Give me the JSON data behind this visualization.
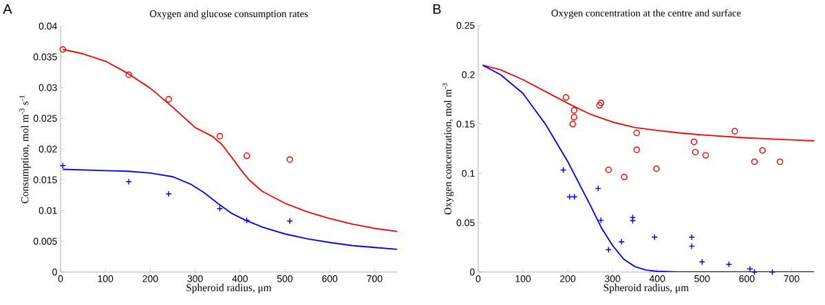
{
  "chart_data": [
    {
      "type": "line",
      "title": "Oxygen and glucose consumption rates",
      "xlabel": "Spheroid radius, μm",
      "ylabel": "Consumption, mol m$^{-3}$ s$^{-1}$",
      "annotations": [
        "A"
      ],
      "xlim": [
        0,
        750
      ],
      "ylim": [
        0,
        0.04
      ],
      "xticks": [
        0,
        100,
        200,
        300,
        400,
        500,
        600,
        700
      ],
      "yticks": [
        0,
        0.005,
        0.01,
        0.015,
        0.02,
        0.025,
        0.03,
        0.035,
        0.04
      ],
      "series": [
        {
          "color": "#ff0000",
          "x": [
            5,
            50,
            100,
            150,
            200,
            250,
            300,
            340,
            360,
            380,
            400,
            420,
            450,
            500,
            550,
            600,
            650,
            700,
            750
          ],
          "values": [
            0.0362,
            0.0355,
            0.0343,
            0.0323,
            0.0299,
            0.0268,
            0.0235,
            0.022,
            0.0207,
            0.0188,
            0.0168,
            0.015,
            0.0131,
            0.0112,
            0.0098,
            0.0087,
            0.0078,
            0.0071,
            0.0066
          ]
        },
        {
          "color": "#0000ff",
          "x": [
            5,
            100,
            150,
            200,
            250,
            290,
            320,
            350,
            380,
            410,
            450,
            500,
            550,
            600,
            650,
            700,
            750
          ],
          "values": [
            0.0167,
            0.0165,
            0.0164,
            0.0161,
            0.0155,
            0.0143,
            0.0129,
            0.0112,
            0.0096,
            0.0085,
            0.0073,
            0.0062,
            0.0054,
            0.0048,
            0.0043,
            0.004,
            0.0037
          ]
        },
        {
          "type": "scatter",
          "marker": "circle",
          "color": "#ff0000",
          "x": [
            5,
            152,
            241,
            355,
            415,
            511
          ],
          "values": [
            0.0362,
            0.0321,
            0.0281,
            0.0221,
            0.0189,
            0.0183
          ]
        },
        {
          "type": "scatter",
          "marker": "cross",
          "color": "#0000ff",
          "x": [
            5,
            152,
            241,
            355,
            415,
            511
          ],
          "values": [
            0.0173,
            0.0147,
            0.0127,
            0.0103,
            0.0084,
            0.0083
          ]
        }
      ]
    },
    {
      "type": "line",
      "title": "Oxygen concentration at the centre and surface",
      "xlabel": "Spheroid radius, μm",
      "ylabel": "Oxygen concentration, mol m$^{-3}$",
      "annotations": [
        "B"
      ],
      "xlim": [
        0,
        750
      ],
      "ylim": [
        0,
        0.25
      ],
      "xticks": [
        0,
        100,
        200,
        300,
        400,
        500,
        600,
        700
      ],
      "yticks": [
        0,
        0.05,
        0.1,
        0.15,
        0.2,
        0.25
      ],
      "series": [
        {
          "color": "#ff0000",
          "x": [
            10,
            50,
            100,
            150,
            200,
            250,
            300,
            350,
            400,
            450,
            500,
            550,
            600,
            650,
            700,
            750
          ],
          "values": [
            0.2097,
            0.205,
            0.195,
            0.183,
            0.171,
            0.16,
            0.152,
            0.1465,
            0.1435,
            0.141,
            0.139,
            0.1375,
            0.136,
            0.135,
            0.134,
            0.133
          ]
        },
        {
          "color": "#0000ff",
          "x": [
            10,
            50,
            100,
            150,
            200,
            250,
            275,
            300,
            325,
            350,
            375,
            400,
            450,
            500,
            750
          ],
          "values": [
            0.2097,
            0.2,
            0.181,
            0.15,
            0.112,
            0.068,
            0.045,
            0.027,
            0.013,
            0.0055,
            0.002,
            0.0007,
            0.0001,
            0,
            0
          ]
        },
        {
          "type": "scatter",
          "marker": "circle",
          "color": "#ff0000",
          "x": [
            196,
            214,
            214,
            211,
            271,
            274,
            354,
            354,
            291,
            326,
            398,
            482,
            485,
            508,
            573,
            617,
            635,
            674
          ],
          "values": [
            0.177,
            0.164,
            0.157,
            0.15,
            0.169,
            0.1715,
            0.141,
            0.124,
            0.1036,
            0.0964,
            0.1048,
            0.132,
            0.1216,
            0.1183,
            0.1428,
            0.1118,
            0.1233,
            0.1118
          ]
        },
        {
          "type": "scatter",
          "marker": "cross",
          "color": "#0000ff",
          "x": [
            190,
            204,
            215,
            268,
            274,
            345,
            345,
            291,
            320,
            394,
            477,
            477,
            500,
            560,
            607,
            617,
            657
          ],
          "values": [
            0.1034,
            0.0763,
            0.0763,
            0.0847,
            0.0525,
            0.0554,
            0.0521,
            0.0226,
            0.0307,
            0.0353,
            0.0353,
            0.0262,
            0.0103,
            0.0079,
            0.0031,
            0,
            0
          ]
        }
      ]
    }
  ]
}
